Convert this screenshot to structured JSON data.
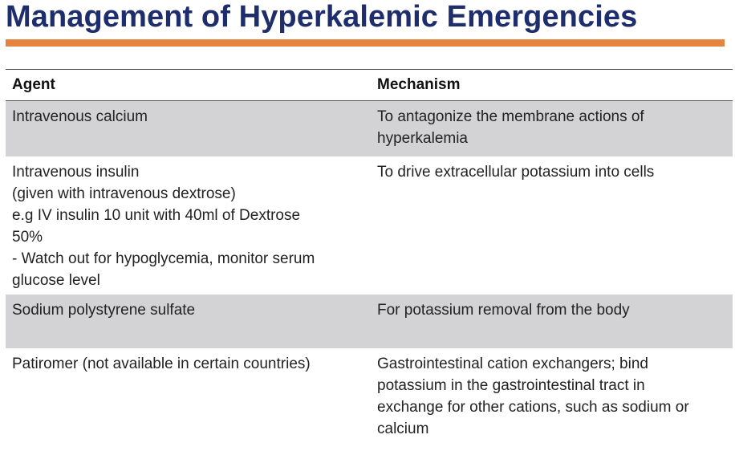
{
  "slide": {
    "title": "Management of Hyperkalemic Emergencies"
  },
  "table": {
    "headers": [
      "Agent",
      "Mechanism"
    ],
    "rows": [
      {
        "agent": [
          "Intravenous calcium"
        ],
        "mechanism": [
          "To antagonize the membrane actions of",
          "hyperkalemia"
        ]
      },
      {
        "agent": [
          "Intravenous insulin",
          "(given with intravenous dextrose)",
          "e.g IV insulin 10 unit with 40ml of Dextrose",
          "50%",
          "- Watch out for hypoglycemia, monitor serum",
          "glucose level"
        ],
        "mechanism": [
          "To drive extracellular potassium into cells"
        ]
      },
      {
        "agent": [
          "Sodium polystyrene sulfate"
        ],
        "mechanism": [
          "For potassium removal from the body"
        ]
      },
      {
        "agent": [
          "Patiromer (not available in certain countries)"
        ],
        "mechanism": [
          "Gastrointestinal cation exchangers; bind",
          "potassium in the gastrointestinal tract in",
          "exchange for other cations, such as sodium or",
          "calcium"
        ]
      }
    ]
  },
  "colors": {
    "title": "#1e2d6b",
    "accent_bar": "#e6843f",
    "shaded_row": "#d3d2d5"
  }
}
